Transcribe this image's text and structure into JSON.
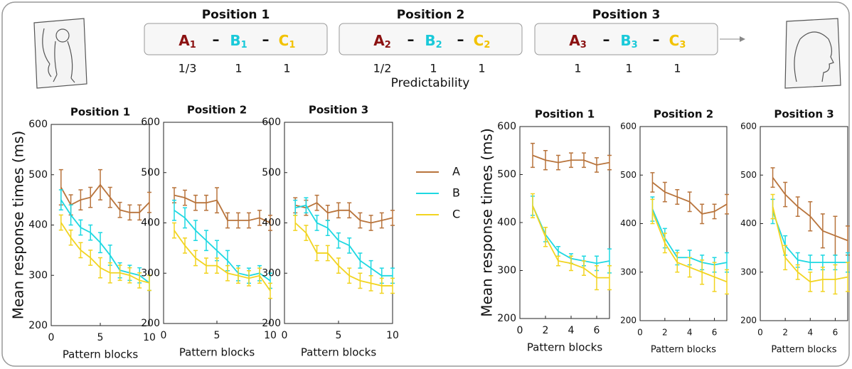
{
  "diagram": {
    "separator": "–",
    "predictability_label": "Predictability",
    "positions": [
      {
        "title": "Position 1",
        "items": [
          {
            "letter": "A",
            "sub": "1",
            "color": "#8b1111"
          },
          {
            "letter": "B",
            "sub": "1",
            "color": "#19c9d9"
          },
          {
            "letter": "C",
            "sub": "1",
            "color": "#f2c200"
          }
        ],
        "predictability": [
          "1/3",
          "1",
          "1"
        ]
      },
      {
        "title": "Position 2",
        "items": [
          {
            "letter": "A",
            "sub": "2",
            "color": "#8b1111"
          },
          {
            "letter": "B",
            "sub": "2",
            "color": "#19c9d9"
          },
          {
            "letter": "C",
            "sub": "2",
            "color": "#f2c200"
          }
        ],
        "predictability": [
          "1/2",
          "1",
          "1"
        ]
      },
      {
        "title": "Position 3",
        "items": [
          {
            "letter": "A",
            "sub": "3",
            "color": "#8b1111"
          },
          {
            "letter": "B",
            "sub": "3",
            "color": "#19c9d9"
          },
          {
            "letter": "C",
            "sub": "3",
            "color": "#f2c200"
          }
        ],
        "predictability": [
          "1",
          "1",
          "1"
        ]
      }
    ]
  },
  "chart_data": [
    {
      "type": "line",
      "title": "Position 1",
      "ylabel": "Mean response times (ms)",
      "xlabel": "Pattern blocks",
      "x": [
        1,
        2,
        3,
        4,
        5,
        6,
        7,
        8,
        9,
        10
      ],
      "xlim": [
        0,
        10
      ],
      "xticks": [
        0,
        5,
        10
      ],
      "ylim": [
        200,
        600
      ],
      "yticks": [
        200,
        300,
        400,
        500,
        600
      ],
      "series": [
        {
          "name": "A",
          "color": "#b8743c",
          "values": [
            475,
            440,
            450,
            455,
            480,
            455,
            430,
            425,
            425,
            445
          ],
          "errors": [
            35,
            20,
            20,
            20,
            30,
            20,
            15,
            15,
            15,
            20
          ]
        },
        {
          "name": "B",
          "color": "#1ed8e2",
          "values": [
            450,
            420,
            395,
            385,
            365,
            340,
            310,
            305,
            300,
            285
          ],
          "errors": [
            20,
            20,
            15,
            15,
            20,
            20,
            15,
            15,
            15,
            15
          ]
        },
        {
          "name": "C",
          "color": "#f2d420",
          "values": [
            405,
            375,
            350,
            335,
            315,
            305,
            305,
            300,
            290,
            285
          ],
          "errors": [
            15,
            15,
            15,
            15,
            20,
            20,
            15,
            15,
            15,
            15
          ]
        }
      ]
    },
    {
      "type": "line",
      "title": "Position 2",
      "xlabel": "Pattern blocks",
      "x": [
        1,
        2,
        3,
        4,
        5,
        6,
        7,
        8,
        9,
        10
      ],
      "xlim": [
        0,
        10
      ],
      "xticks": [
        0,
        5,
        10
      ],
      "ylim": [
        200,
        600
      ],
      "yticks": [
        200,
        300,
        400,
        500,
        600
      ],
      "series": [
        {
          "name": "A",
          "color": "#b8743c",
          "values": [
            455,
            450,
            440,
            440,
            445,
            405,
            405,
            405,
            410,
            400
          ],
          "errors": [
            15,
            15,
            15,
            15,
            25,
            15,
            15,
            15,
            15,
            15
          ]
        },
        {
          "name": "B",
          "color": "#1ed8e2",
          "values": [
            425,
            410,
            385,
            365,
            345,
            325,
            300,
            295,
            300,
            285
          ],
          "errors": [
            20,
            20,
            20,
            20,
            20,
            20,
            15,
            15,
            15,
            15
          ]
        },
        {
          "name": "C",
          "color": "#f2d420",
          "values": [
            385,
            355,
            330,
            315,
            315,
            300,
            295,
            290,
            295,
            265
          ],
          "errors": [
            15,
            15,
            15,
            15,
            15,
            15,
            15,
            15,
            15,
            15
          ]
        }
      ]
    },
    {
      "type": "line",
      "title": "Position 3",
      "xlabel": "Pattern blocks",
      "x": [
        1,
        2,
        3,
        4,
        5,
        6,
        7,
        8,
        9,
        10
      ],
      "xlim": [
        0,
        10
      ],
      "xticks": [
        0,
        5,
        10
      ],
      "ylim": [
        200,
        600
      ],
      "yticks": [
        200,
        300,
        400,
        500,
        600
      ],
      "series": [
        {
          "name": "A",
          "color": "#b8743c",
          "values": [
            435,
            430,
            440,
            420,
            425,
            425,
            405,
            400,
            405,
            410
          ],
          "errors": [
            15,
            15,
            15,
            15,
            15,
            15,
            15,
            15,
            15,
            15
          ]
        },
        {
          "name": "B",
          "color": "#1ed8e2",
          "values": [
            430,
            435,
            400,
            390,
            365,
            355,
            325,
            310,
            295,
            295
          ],
          "errors": [
            15,
            15,
            15,
            15,
            15,
            15,
            15,
            15,
            15,
            15
          ]
        },
        {
          "name": "C",
          "color": "#f2d420",
          "values": [
            400,
            380,
            340,
            340,
            315,
            295,
            285,
            280,
            275,
            275
          ],
          "errors": [
            15,
            15,
            15,
            15,
            15,
            15,
            15,
            15,
            15,
            15
          ]
        }
      ]
    },
    {
      "type": "line",
      "title": "Position 1",
      "ylabel": "Mean response times (ms)",
      "xlabel": "Pattern blocks",
      "x": [
        1,
        2,
        3,
        4,
        5,
        6,
        7
      ],
      "xlim": [
        0,
        7
      ],
      "xticks": [
        0,
        2,
        4,
        6
      ],
      "ylim": [
        200,
        600
      ],
      "yticks": [
        200,
        300,
        400,
        500,
        600
      ],
      "series": [
        {
          "name": "A",
          "color": "#b8743c",
          "values": [
            540,
            530,
            525,
            530,
            530,
            520,
            525
          ],
          "errors": [
            25,
            20,
            15,
            15,
            15,
            15,
            15
          ]
        },
        {
          "name": "B",
          "color": "#1ed8e2",
          "values": [
            435,
            375,
            340,
            325,
            320,
            315,
            320
          ],
          "errors": [
            20,
            15,
            10,
            10,
            10,
            15,
            25
          ]
        },
        {
          "name": "C",
          "color": "#f2d420",
          "values": [
            435,
            370,
            320,
            315,
            305,
            285,
            285
          ],
          "errors": [
            25,
            20,
            10,
            15,
            15,
            25,
            25
          ]
        }
      ]
    },
    {
      "type": "line",
      "title": "Position 2",
      "xlabel": "Pattern blocks",
      "x": [
        1,
        2,
        3,
        4,
        5,
        6,
        7
      ],
      "xlim": [
        0,
        7
      ],
      "xticks": [
        0,
        2,
        4,
        6
      ],
      "ylim": [
        200,
        600
      ],
      "yticks": [
        200,
        300,
        400,
        500,
        600
      ],
      "series": [
        {
          "name": "A",
          "color": "#b8743c",
          "values": [
            485,
            465,
            455,
            445,
            420,
            425,
            440
          ],
          "errors": [
            20,
            20,
            15,
            20,
            20,
            15,
            20
          ]
        },
        {
          "name": "B",
          "color": "#1ed8e2",
          "values": [
            430,
            370,
            330,
            330,
            320,
            315,
            320
          ],
          "errors": [
            25,
            20,
            15,
            15,
            15,
            15,
            20
          ]
        },
        {
          "name": "C",
          "color": "#f2d420",
          "values": [
            425,
            360,
            320,
            310,
            300,
            290,
            280
          ],
          "errors": [
            25,
            20,
            20,
            20,
            25,
            30,
            25
          ]
        }
      ]
    },
    {
      "type": "line",
      "title": "Position 3",
      "xlabel": "Pattern blocks",
      "x": [
        1,
        2,
        3,
        4,
        5,
        6,
        7
      ],
      "xlim": [
        0,
        7
      ],
      "xticks": [
        0,
        2,
        4,
        6
      ],
      "ylim": [
        200,
        600
      ],
      "yticks": [
        200,
        300,
        400,
        500,
        600
      ],
      "series": [
        {
          "name": "A",
          "color": "#b8743c",
          "values": [
            495,
            460,
            435,
            415,
            385,
            375,
            365
          ],
          "errors": [
            20,
            25,
            20,
            30,
            35,
            40,
            30
          ]
        },
        {
          "name": "B",
          "color": "#1ed8e2",
          "values": [
            425,
            355,
            325,
            320,
            320,
            320,
            320
          ],
          "errors": [
            25,
            20,
            15,
            15,
            15,
            15,
            20
          ]
        },
        {
          "name": "C",
          "color": "#f2d420",
          "values": [
            435,
            330,
            300,
            280,
            285,
            285,
            290
          ],
          "errors": [
            25,
            25,
            15,
            20,
            25,
            30,
            30
          ]
        }
      ]
    }
  ]
}
